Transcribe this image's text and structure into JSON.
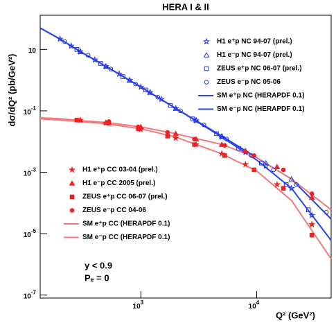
{
  "chart_data": {
    "type": "scatter",
    "title": "HERA I & II",
    "x_label": "Q² (GeV²)",
    "y_label": "dσ/dQ² (pb/GeV²)",
    "log_x": true,
    "log_y": true,
    "xlim": [
      135,
      44000
    ],
    "ylim": [
      8e-08,
      130
    ],
    "xticks": [
      {
        "value": 1000,
        "label": "10",
        "exponent": "3"
      },
      {
        "value": 10000,
        "label": "10",
        "exponent": "4"
      }
    ],
    "yticks": [
      {
        "value": 1e-07,
        "label": "10",
        "exponent": "-7"
      },
      {
        "value": 1e-05,
        "label": "10",
        "exponent": "-5"
      },
      {
        "value": 0.001,
        "label": "10",
        "exponent": "-3"
      },
      {
        "value": 0.1,
        "label": "10",
        "exponent": "-1"
      },
      10
    ],
    "annotations": [
      "y < 0.9",
      "Pₑ = 0"
    ],
    "series": [
      {
        "name": "H1 e⁺p NC 94-07 (prel.)",
        "kind": "points",
        "marker": "star",
        "filled": false,
        "color": "#2233dd",
        "x": [
          200,
          250,
          300,
          400,
          500,
          650,
          800,
          1000,
          1200,
          1500,
          2000,
          3000,
          5000,
          8000,
          12000,
          20000,
          30000
        ],
        "values": [
          22,
          13,
          8.5,
          4.6,
          2.8,
          1.6,
          1.0,
          0.6,
          0.4,
          0.24,
          0.12,
          0.048,
          0.014,
          0.0045,
          0.0016,
          0.0003,
          4e-05
        ]
      },
      {
        "name": "H1 e⁻p NC 94-07 (prel.)",
        "kind": "points",
        "marker": "triangle",
        "filled": false,
        "color": "#2233dd",
        "x": [
          300,
          500,
          800,
          1200,
          2000,
          3000,
          5000,
          8000,
          12000,
          20000,
          30000
        ],
        "values": [
          8.5,
          2.8,
          1.0,
          0.4,
          0.12,
          0.05,
          0.015,
          0.005,
          0.002,
          0.0006,
          0.00015
        ]
      },
      {
        "name": "ZEUS e⁺p NC 06-07 (prel.)",
        "kind": "points",
        "marker": "square",
        "filled": false,
        "color": "#2233dd",
        "x": [
          280,
          450,
          700,
          1100,
          1800,
          2800,
          4500,
          7000,
          11000,
          18000,
          28000
        ],
        "values": [
          10,
          3.5,
          1.3,
          0.48,
          0.15,
          0.055,
          0.018,
          0.006,
          0.002,
          0.0004,
          6e-05
        ]
      },
      {
        "name": "ZEUS e⁻p NC 05-06",
        "kind": "points",
        "marker": "circle",
        "filled": false,
        "color": "#2233dd",
        "x": [
          220,
          350,
          550,
          900,
          1400,
          2200,
          3500,
          5500,
          9000,
          14000,
          22000,
          40000
        ],
        "values": [
          18,
          6.5,
          2.3,
          0.75,
          0.28,
          0.1,
          0.035,
          0.012,
          0.0035,
          0.0012,
          0.0004,
          5e-05
        ]
      },
      {
        "name": "SM e⁺p NC (HERAPDF 0.1)",
        "kind": "line",
        "color": "#2244ee",
        "x": [
          135,
          200,
          300,
          500,
          1000,
          2000,
          5000,
          10000,
          20000,
          44000
        ],
        "values": [
          50,
          22,
          8.5,
          2.8,
          0.6,
          0.12,
          0.014,
          0.0025,
          0.0003,
          6e-06
        ]
      },
      {
        "name": "SM e⁻p NC (HERAPDF 0.1)",
        "kind": "line",
        "color": "#2244ee",
        "x": [
          135,
          200,
          300,
          500,
          1000,
          2000,
          5000,
          10000,
          20000,
          44000
        ],
        "values": [
          50,
          22,
          8.5,
          2.8,
          0.6,
          0.12,
          0.015,
          0.003,
          0.0006,
          3e-05
        ]
      },
      {
        "name": "H1 e⁺p CC 03-04 (prel.)",
        "kind": "points",
        "marker": "star",
        "filled": true,
        "color": "#ee2222",
        "x": [
          300,
          500,
          1000,
          2000,
          3000,
          5000,
          8000,
          15000,
          30000
        ],
        "values": [
          0.05,
          0.04,
          0.025,
          0.013,
          0.008,
          0.004,
          0.0018,
          0.0004,
          2e-05
        ]
      },
      {
        "name": "H1 e⁻p CC 2005 (prel.)",
        "kind": "points",
        "marker": "triangle",
        "filled": true,
        "color": "#ee2222",
        "x": [
          300,
          500,
          1000,
          2000,
          3000,
          5000,
          8000,
          15000,
          30000
        ],
        "values": [
          0.05,
          0.042,
          0.03,
          0.018,
          0.012,
          0.008,
          0.005,
          0.0015,
          0.00015
        ]
      },
      {
        "name": "ZEUS e⁺p CC 06-07 (prel.)",
        "kind": "points",
        "marker": "square",
        "filled": true,
        "color": "#ee2222",
        "x": [
          280,
          530,
          950,
          1700,
          2900,
          5300,
          9500,
          17000,
          30000
        ],
        "values": [
          0.05,
          0.04,
          0.026,
          0.015,
          0.008,
          0.0035,
          0.0012,
          0.0003,
          9e-06
        ]
      },
      {
        "name": "ZEUS e⁻p CC 04-06",
        "kind": "points",
        "marker": "circle",
        "filled": true,
        "color": "#ee2222",
        "x": [
          280,
          530,
          950,
          1700,
          2900,
          5300,
          9500,
          17000,
          30000
        ],
        "values": [
          0.05,
          0.045,
          0.03,
          0.02,
          0.012,
          0.0075,
          0.0035,
          0.0012,
          0.0002
        ]
      },
      {
        "name": "SM e⁺p CC (HERAPDF 0.1)",
        "kind": "line",
        "color": "#f27a7a",
        "x": [
          135,
          200,
          300,
          500,
          1000,
          2000,
          5000,
          10000,
          20000,
          44000
        ],
        "values": [
          0.055,
          0.05,
          0.045,
          0.038,
          0.026,
          0.014,
          0.004,
          0.0011,
          0.00012,
          1.5e-06
        ]
      },
      {
        "name": "SM e⁻p CC (HERAPDF 0.1)",
        "kind": "line",
        "color": "#f27a7a",
        "x": [
          135,
          200,
          300,
          500,
          1000,
          2000,
          5000,
          10000,
          20000,
          44000
        ],
        "values": [
          0.06,
          0.055,
          0.048,
          0.042,
          0.03,
          0.018,
          0.008,
          0.003,
          0.0006,
          6e-05
        ]
      }
    ]
  }
}
